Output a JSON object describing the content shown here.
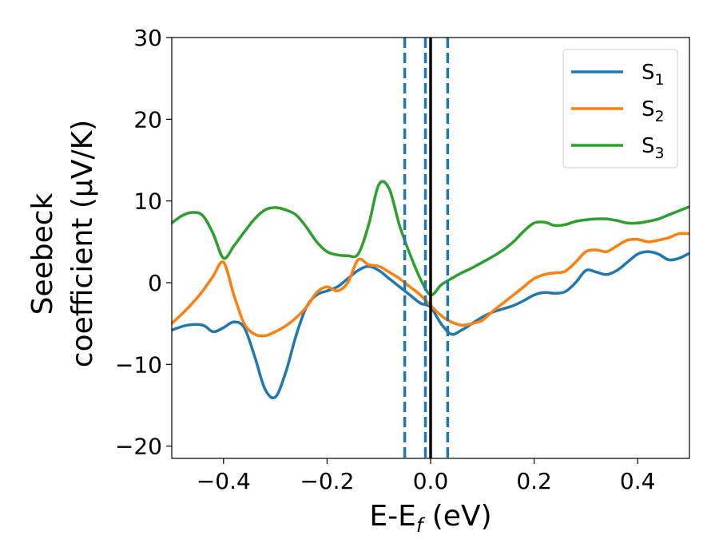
{
  "chart_data": {
    "type": "line",
    "title": "",
    "xlabel": "E-E",
    "xlabel_sub": "f",
    "xlabel_unit": " (eV)",
    "ylabel_line1": "Seebeck",
    "ylabel_line2": "coefficient  (μV/K)",
    "xlim": [
      -0.5,
      0.5
    ],
    "ylim": [
      -21.5,
      30
    ],
    "xticks": [
      -0.4,
      -0.2,
      0.0,
      0.2,
      0.4
    ],
    "xtick_labels": [
      "−0.4",
      "−0.2",
      "0.0",
      "0.2",
      "0.4"
    ],
    "yticks": [
      -20,
      -10,
      0,
      10,
      20,
      30
    ],
    "ytick_labels": [
      "−20",
      "−10",
      "0",
      "10",
      "20",
      "30"
    ],
    "grid": false,
    "legend_position": "top-right",
    "series": [
      {
        "name": "S",
        "sub": "1",
        "color": "#1f77b4",
        "x": [
          -0.5,
          -0.47,
          -0.44,
          -0.42,
          -0.4,
          -0.38,
          -0.36,
          -0.34,
          -0.32,
          -0.3,
          -0.28,
          -0.26,
          -0.24,
          -0.22,
          -0.2,
          -0.18,
          -0.16,
          -0.14,
          -0.12,
          -0.1,
          -0.08,
          -0.06,
          -0.04,
          -0.02,
          0.0,
          0.02,
          0.04,
          0.06,
          0.08,
          0.1,
          0.12,
          0.14,
          0.16,
          0.18,
          0.2,
          0.22,
          0.24,
          0.26,
          0.28,
          0.3,
          0.32,
          0.34,
          0.36,
          0.38,
          0.4,
          0.42,
          0.44,
          0.46,
          0.48,
          0.5
        ],
        "y": [
          -5.8,
          -5.2,
          -5.2,
          -6.0,
          -5.5,
          -4.8,
          -5.5,
          -9.0,
          -13.0,
          -14.0,
          -11.0,
          -6.5,
          -3.0,
          -1.5,
          -1.0,
          -0.5,
          0.5,
          1.5,
          2.0,
          1.5,
          0.5,
          -0.5,
          -1.5,
          -2.5,
          -3.0,
          -5.0,
          -6.3,
          -5.8,
          -5.0,
          -4.2,
          -3.6,
          -3.2,
          -2.8,
          -2.2,
          -1.5,
          -1.2,
          -1.3,
          -1.1,
          0.0,
          1.5,
          1.3,
          1.0,
          1.5,
          2.5,
          3.5,
          3.8,
          3.5,
          2.8,
          3.0,
          3.6
        ]
      },
      {
        "name": "S",
        "sub": "2",
        "color": "#ff7f0e",
        "x": [
          -0.5,
          -0.48,
          -0.46,
          -0.44,
          -0.42,
          -0.4,
          -0.38,
          -0.36,
          -0.34,
          -0.32,
          -0.3,
          -0.28,
          -0.26,
          -0.24,
          -0.22,
          -0.2,
          -0.18,
          -0.16,
          -0.14,
          -0.12,
          -0.1,
          -0.08,
          -0.06,
          -0.04,
          -0.02,
          0.0,
          0.02,
          0.04,
          0.06,
          0.08,
          0.1,
          0.12,
          0.14,
          0.16,
          0.18,
          0.2,
          0.22,
          0.24,
          0.26,
          0.28,
          0.3,
          0.32,
          0.34,
          0.36,
          0.38,
          0.4,
          0.42,
          0.44,
          0.46,
          0.48,
          0.5
        ],
        "y": [
          -5.0,
          -3.8,
          -2.5,
          -1.0,
          0.8,
          2.5,
          -1.5,
          -5.0,
          -6.3,
          -6.5,
          -6.0,
          -5.3,
          -4.3,
          -3.0,
          -1.2,
          -0.5,
          -1.0,
          0.0,
          2.8,
          2.2,
          2.0,
          1.3,
          0.5,
          -0.5,
          -1.5,
          -2.8,
          -4.0,
          -4.8,
          -5.2,
          -5.0,
          -4.6,
          -3.5,
          -2.5,
          -1.5,
          -0.5,
          0.5,
          1.0,
          1.2,
          1.4,
          2.5,
          3.8,
          4.0,
          3.8,
          4.5,
          5.2,
          5.3,
          5.0,
          5.2,
          5.5,
          6.0,
          6.0
        ]
      },
      {
        "name": "S",
        "sub": "3",
        "color": "#2ca02c",
        "x": [
          -0.5,
          -0.48,
          -0.46,
          -0.44,
          -0.42,
          -0.4,
          -0.38,
          -0.36,
          -0.34,
          -0.32,
          -0.3,
          -0.28,
          -0.26,
          -0.24,
          -0.22,
          -0.2,
          -0.18,
          -0.16,
          -0.14,
          -0.12,
          -0.1,
          -0.08,
          -0.06,
          -0.04,
          -0.02,
          0.0,
          0.02,
          0.04,
          0.06,
          0.08,
          0.1,
          0.12,
          0.14,
          0.16,
          0.18,
          0.2,
          0.22,
          0.24,
          0.26,
          0.28,
          0.3,
          0.32,
          0.34,
          0.36,
          0.38,
          0.4,
          0.42,
          0.44,
          0.46,
          0.48,
          0.5
        ],
        "y": [
          7.3,
          8.2,
          8.6,
          8.2,
          6.0,
          3.0,
          4.5,
          6.2,
          7.8,
          8.9,
          9.2,
          8.9,
          8.3,
          6.8,
          5.0,
          3.8,
          3.4,
          3.3,
          3.5,
          7.0,
          12.0,
          11.5,
          7.0,
          3.5,
          0.5,
          -1.5,
          -0.3,
          0.5,
          1.2,
          1.8,
          2.5,
          3.2,
          4.0,
          5.0,
          6.3,
          7.3,
          7.4,
          7.0,
          7.1,
          7.5,
          7.7,
          7.8,
          7.8,
          7.6,
          7.3,
          7.3,
          7.5,
          7.8,
          8.3,
          8.8,
          9.3
        ]
      }
    ],
    "vlines": [
      {
        "x": -0.05,
        "style": "dashed",
        "color": "#1f77b4"
      },
      {
        "x": -0.01,
        "style": "dashed",
        "color": "#1f77b4"
      },
      {
        "x": 0.0,
        "style": "solid",
        "color": "#000000"
      },
      {
        "x": 0.033,
        "style": "dashed",
        "color": "#1f77b4"
      }
    ]
  }
}
